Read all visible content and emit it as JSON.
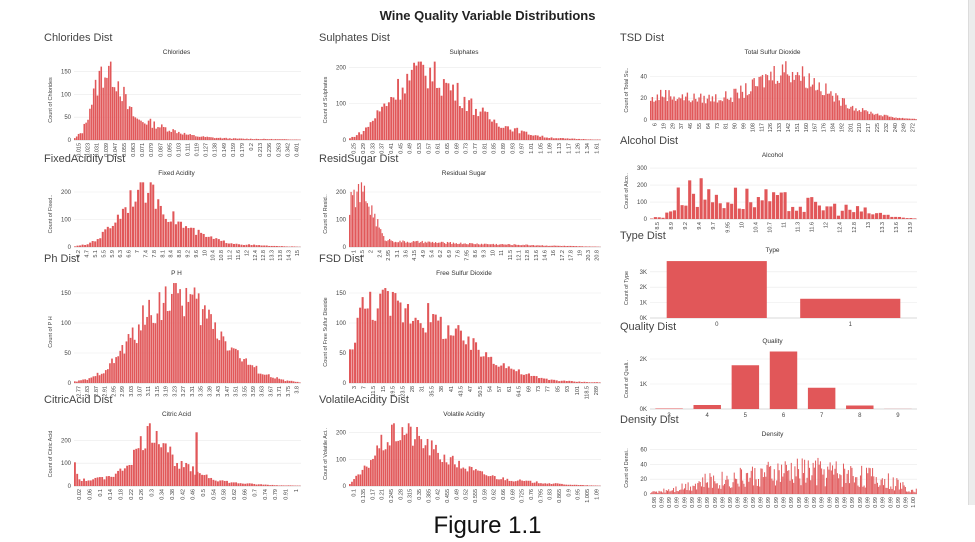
{
  "dashboard_title": "Wine Quality Variable Distributions",
  "figure_caption": "Figure 1.1",
  "colors": {
    "bar": "#e15759",
    "grid": "#eaeaea",
    "axis": "#bbbbbb",
    "text": "#444444"
  },
  "chart_data": [
    {
      "id": "chlorides",
      "panel_title": "Chlorides Dist",
      "title": "Chlorides",
      "ylabel": "Count of Chlorides",
      "type": "histogram",
      "yticks": [
        0,
        50,
        100,
        150
      ],
      "ylim": [
        0,
        175
      ],
      "xticks": [
        "0.015",
        "0.023",
        "0.031",
        "0.039",
        "0.047",
        "0.055",
        "0.063",
        "0.071",
        "0.079",
        "0.087",
        "0.095",
        "0.103",
        "0.111",
        "0.119",
        "0.127",
        "0.138",
        "0.149",
        "0.159",
        "0.179",
        "0.2",
        "0.213",
        "0.236",
        "0.263",
        "0.342",
        "0.401"
      ],
      "profile": {
        "anchors": [
          [
            0,
            2
          ],
          [
            0.04,
            20
          ],
          [
            0.08,
            90
          ],
          [
            0.12,
            150
          ],
          [
            0.16,
            160
          ],
          [
            0.2,
            130
          ],
          [
            0.24,
            70
          ],
          [
            0.28,
            45
          ],
          [
            0.33,
            40
          ],
          [
            0.38,
            30
          ],
          [
            0.45,
            20
          ],
          [
            0.5,
            12
          ],
          [
            0.55,
            8
          ],
          [
            0.62,
            5
          ],
          [
            0.72,
            3
          ],
          [
            1,
            1
          ]
        ],
        "bins": 120
      }
    },
    {
      "id": "sulphates",
      "panel_title": "Sulphates Dist",
      "title": "Sulphates",
      "ylabel": "Count of Sulphates",
      "type": "histogram",
      "yticks": [
        0,
        100,
        200
      ],
      "ylim": [
        0,
        220
      ],
      "xticks": [
        "0.25",
        "0.29",
        "0.33",
        "0.37",
        "0.41",
        "0.45",
        "0.49",
        "0.53",
        "0.57",
        "0.61",
        "0.65",
        "0.69",
        "0.73",
        "0.77",
        "0.81",
        "0.85",
        "0.89",
        "0.93",
        "0.97",
        "1.01",
        "1.05",
        "1.09",
        "1.13",
        "1.17",
        "1.26",
        "1.34",
        "1.61"
      ],
      "profile": {
        "anchors": [
          [
            0,
            3
          ],
          [
            0.06,
            25
          ],
          [
            0.12,
            80
          ],
          [
            0.2,
            150
          ],
          [
            0.26,
            190
          ],
          [
            0.3,
            200
          ],
          [
            0.36,
            170
          ],
          [
            0.42,
            140
          ],
          [
            0.5,
            90
          ],
          [
            0.56,
            60
          ],
          [
            0.62,
            40
          ],
          [
            0.7,
            20
          ],
          [
            0.78,
            8
          ],
          [
            0.86,
            4
          ],
          [
            1,
            1
          ]
        ],
        "bins": 110
      }
    },
    {
      "id": "tsd",
      "panel_title": "TSD Dist",
      "title": "Total Sulfur Dioxide",
      "ylabel": "Count of Total Su..",
      "type": "histogram",
      "yticks": [
        0,
        20,
        40
      ],
      "ylim": [
        0,
        55
      ],
      "xticks": [
        "6",
        "19",
        "29",
        "37",
        "46",
        "55",
        "64",
        "73",
        "81",
        "90",
        "99",
        "108",
        "117",
        "126",
        "133",
        "142",
        "151",
        "160",
        "167",
        "176",
        "184",
        "192",
        "201",
        "210",
        "217",
        "225",
        "232",
        "240",
        "249",
        "272"
      ],
      "profile": {
        "anchors": [
          [
            0,
            18
          ],
          [
            0.05,
            25
          ],
          [
            0.1,
            22
          ],
          [
            0.2,
            20
          ],
          [
            0.3,
            22
          ],
          [
            0.38,
            30
          ],
          [
            0.45,
            42
          ],
          [
            0.5,
            48
          ],
          [
            0.55,
            45
          ],
          [
            0.62,
            35
          ],
          [
            0.7,
            20
          ],
          [
            0.78,
            10
          ],
          [
            0.86,
            5
          ],
          [
            0.93,
            2
          ],
          [
            1,
            1
          ]
        ],
        "bins": 160
      }
    },
    {
      "id": "alcohol",
      "panel_title": "Alcohol Dist",
      "title": "Alcohol",
      "ylabel": "Count of Alco..",
      "type": "histogram",
      "yticks": [
        0,
        100,
        200,
        300
      ],
      "ylim": [
        0,
        330
      ],
      "xticks": [
        "8.5",
        "8.9",
        "9.2",
        "9.4",
        "9.7",
        "9.95",
        "10",
        "10.4",
        "10.7",
        "11",
        "11.3",
        "11.6",
        "12",
        "12.4",
        "12.8",
        "13",
        "13.3",
        "13.6",
        "13.9"
      ],
      "profile": {
        "anchors": [
          [
            0,
            2
          ],
          [
            0.05,
            20
          ],
          [
            0.1,
            120
          ],
          [
            0.14,
            260
          ],
          [
            0.2,
            180
          ],
          [
            0.3,
            160
          ],
          [
            0.4,
            140
          ],
          [
            0.5,
            120
          ],
          [
            0.6,
            100
          ],
          [
            0.7,
            80
          ],
          [
            0.8,
            55
          ],
          [
            0.88,
            30
          ],
          [
            0.95,
            10
          ],
          [
            1,
            2
          ]
        ],
        "bins": 70,
        "spiky": true
      }
    },
    {
      "id": "fixed_acidity",
      "panel_title": "FixedAcidity Dist",
      "title": "Fixed Acidity",
      "ylabel": "Count of Fixed..",
      "type": "histogram",
      "yticks": [
        0,
        100,
        200
      ],
      "ylim": [
        0,
        240
      ],
      "xticks": [
        "4.2",
        "4.7",
        "5.1",
        "5.5",
        "5.9",
        "6.3",
        "6.6",
        "7",
        "7.4",
        "7.8",
        "8.1",
        "8.4",
        "8.8",
        "9.2",
        "9.6",
        "10",
        "10.4",
        "10.8",
        "11.2",
        "11.6",
        "12",
        "12.4",
        "12.8",
        "13.3",
        "13.8",
        "14.3",
        "15"
      ],
      "profile": {
        "anchors": [
          [
            0,
            2
          ],
          [
            0.06,
            10
          ],
          [
            0.12,
            40
          ],
          [
            0.2,
            120
          ],
          [
            0.26,
            200
          ],
          [
            0.3,
            230
          ],
          [
            0.36,
            190
          ],
          [
            0.42,
            120
          ],
          [
            0.5,
            70
          ],
          [
            0.58,
            40
          ],
          [
            0.66,
            20
          ],
          [
            0.74,
            10
          ],
          [
            0.82,
            6
          ],
          [
            0.9,
            3
          ],
          [
            1,
            1
          ]
        ],
        "bins": 90
      }
    },
    {
      "id": "resid_sugar",
      "panel_title": "ResidSugar Dist",
      "title": "Residual Sugar",
      "ylabel": "Count of Resid..",
      "type": "histogram",
      "yticks": [
        0,
        100,
        200
      ],
      "ylim": [
        0,
        240
      ],
      "xticks": [
        "1",
        "1.5",
        "2",
        "2.4",
        "2.95",
        "3.1",
        "3.6",
        "4.15",
        "4.9",
        "5.4",
        "6.2",
        "6.9",
        "7.6",
        "7.95",
        "8.6",
        "9.3",
        "10",
        "11",
        "11.5",
        "12.1",
        "12.8",
        "13.6",
        "14.6",
        "16",
        "17.2",
        "17.8",
        "19",
        "20.3",
        "20.8"
      ],
      "profile": {
        "anchors": [
          [
            0,
            150
          ],
          [
            0.03,
            200
          ],
          [
            0.06,
            200
          ],
          [
            0.1,
            120
          ],
          [
            0.14,
            30
          ],
          [
            0.2,
            20
          ],
          [
            0.3,
            18
          ],
          [
            0.4,
            15
          ],
          [
            0.5,
            12
          ],
          [
            0.6,
            10
          ],
          [
            0.7,
            8
          ],
          [
            0.8,
            5
          ],
          [
            0.9,
            3
          ],
          [
            1,
            1
          ]
        ],
        "bins": 170
      }
    },
    {
      "id": "ph",
      "panel_title": "Ph Dist",
      "title": "P H",
      "ylabel": "Count of P H",
      "type": "histogram",
      "yticks": [
        0,
        50,
        100,
        150
      ],
      "ylim": [
        0,
        170
      ],
      "xticks": [
        "2.77",
        "2.83",
        "2.87",
        "2.91",
        "2.95",
        "2.99",
        "3.03",
        "3.07",
        "3.11",
        "3.15",
        "3.19",
        "3.23",
        "3.27",
        "3.31",
        "3.35",
        "3.39",
        "3.43",
        "3.47",
        "3.51",
        "3.55",
        "3.59",
        "3.63",
        "3.67",
        "3.71",
        "3.75",
        "3.8"
      ],
      "profile": {
        "anchors": [
          [
            0,
            2
          ],
          [
            0.08,
            8
          ],
          [
            0.16,
            30
          ],
          [
            0.24,
            70
          ],
          [
            0.32,
            115
          ],
          [
            0.4,
            145
          ],
          [
            0.46,
            155
          ],
          [
            0.52,
            140
          ],
          [
            0.6,
            110
          ],
          [
            0.68,
            70
          ],
          [
            0.76,
            35
          ],
          [
            0.84,
            15
          ],
          [
            0.92,
            5
          ],
          [
            1,
            1
          ]
        ],
        "bins": 110
      }
    },
    {
      "id": "fsd",
      "panel_title": "FSD Dist",
      "title": "Free Sulfur Dioxide",
      "ylabel": "Count of Free Sulfur Dioxide",
      "type": "histogram",
      "yticks": [
        0,
        50,
        100,
        150
      ],
      "ylim": [
        0,
        170
      ],
      "xticks": [
        "3",
        "7",
        "11.5",
        "15",
        "19.5",
        "23.5",
        "28",
        "31",
        "35.5",
        "38",
        "41",
        "43.5",
        "47",
        "50.5",
        "54",
        "57",
        "61",
        "64.5",
        "69",
        "73",
        "77",
        "85",
        "93",
        "101",
        "118.5",
        "289"
      ],
      "profile": {
        "anchors": [
          [
            0,
            40
          ],
          [
            0.04,
            120
          ],
          [
            0.1,
            140
          ],
          [
            0.2,
            130
          ],
          [
            0.3,
            115
          ],
          [
            0.4,
            90
          ],
          [
            0.5,
            60
          ],
          [
            0.6,
            35
          ],
          [
            0.68,
            18
          ],
          [
            0.76,
            8
          ],
          [
            0.84,
            4
          ],
          [
            0.92,
            2
          ],
          [
            1,
            1
          ]
        ],
        "bins": 100
      }
    },
    {
      "id": "type",
      "panel_title": "Type Dist",
      "title": "Type",
      "ylabel": "Count of Type",
      "type": "bar",
      "categories": [
        "0",
        "1"
      ],
      "values": [
        3700,
        1250
      ],
      "yticks": [
        0,
        1000,
        2000,
        3000
      ],
      "ytick_labels": [
        "0K",
        "1K",
        "2K",
        "3K"
      ],
      "ylim": [
        0,
        3900
      ]
    },
    {
      "id": "quality",
      "panel_title": "Quality Dist",
      "title": "Quality",
      "ylabel": "Count of Quali..",
      "type": "bar",
      "categories": [
        "3",
        "4",
        "5",
        "6",
        "7",
        "8",
        "9"
      ],
      "values": [
        20,
        160,
        1750,
        2300,
        850,
        140,
        5
      ],
      "yticks": [
        0,
        1000,
        2000
      ],
      "ytick_labels": [
        "0K",
        "1K",
        "2K"
      ],
      "ylim": [
        0,
        2400
      ]
    },
    {
      "id": "citric_acid",
      "panel_title": "CitricAcid Dist",
      "title": "Citric Acid",
      "ylabel": "Count of Citric Acid",
      "type": "histogram",
      "yticks": [
        0,
        100,
        200
      ],
      "ylim": [
        0,
        280
      ],
      "xticks": [
        "0.02",
        "0.06",
        "0.1",
        "0.14",
        "0.18",
        "0.22",
        "0.26",
        "0.3",
        "0.34",
        "0.38",
        "0.42",
        "0.46",
        "0.5",
        "0.54",
        "0.58",
        "0.62",
        "0.66",
        "0.7",
        "0.74",
        "0.79",
        "0.91",
        "1"
      ],
      "profile": {
        "anchors": [
          [
            0,
            140
          ],
          [
            0.02,
            30
          ],
          [
            0.06,
            25
          ],
          [
            0.12,
            35
          ],
          [
            0.2,
            60
          ],
          [
            0.26,
            130
          ],
          [
            0.32,
            230
          ],
          [
            0.36,
            250
          ],
          [
            0.4,
            200
          ],
          [
            0.44,
            120
          ],
          [
            0.5,
            80
          ],
          [
            0.56,
            60
          ],
          [
            0.62,
            30
          ],
          [
            0.7,
            15
          ],
          [
            0.8,
            8
          ],
          [
            0.9,
            3
          ],
          [
            1,
            2
          ]
        ],
        "bins": 100,
        "spikes": [
          [
            0.535,
            235
          ]
        ]
      }
    },
    {
      "id": "volatile_acidity",
      "panel_title": "VolatileAcidity Dist",
      "title": "Volatile Acidity",
      "ylabel": "Count of Volatile Aci..",
      "type": "histogram",
      "yticks": [
        0,
        100,
        200
      ],
      "ylim": [
        0,
        240
      ],
      "xticks": [
        "0.1",
        "0.135",
        "0.17",
        "0.21",
        "0.245",
        "0.28",
        "0.315",
        "0.35",
        "0.385",
        "0.42",
        "0.455",
        "0.49",
        "0.52",
        "0.555",
        "0.59",
        "0.62",
        "0.66",
        "0.69",
        "0.725",
        "0.76",
        "0.795",
        "0.83",
        "0.865",
        "0.9",
        "0.95",
        "1.005",
        "1.09"
      ],
      "profile": {
        "anchors": [
          [
            0,
            5
          ],
          [
            0.06,
            60
          ],
          [
            0.12,
            150
          ],
          [
            0.18,
            200
          ],
          [
            0.22,
            215
          ],
          [
            0.28,
            180
          ],
          [
            0.36,
            120
          ],
          [
            0.44,
            80
          ],
          [
            0.52,
            50
          ],
          [
            0.6,
            30
          ],
          [
            0.7,
            18
          ],
          [
            0.8,
            10
          ],
          [
            0.9,
            4
          ],
          [
            1,
            1
          ]
        ],
        "bins": 120
      }
    },
    {
      "id": "density",
      "panel_title": "Density Dist",
      "title": "Density",
      "ylabel": "Count of Densi..",
      "type": "histogram",
      "yticks": [
        0,
        20,
        40,
        60
      ],
      "ylim": [
        0,
        70
      ],
      "xticks": [
        "0.98",
        "0.99",
        "0.99",
        "0.99",
        "0.99",
        "0.99",
        "0.99",
        "0.99",
        "0.99",
        "0.99",
        "0.99",
        "0.99",
        "0.99",
        "0.99",
        "0.99",
        "0.99",
        "0.99",
        "0.99",
        "0.99",
        "0.99",
        "0.99",
        "0.99",
        "0.99",
        "0.99",
        "0.99",
        "0.99",
        "0.99",
        "0.99",
        "0.99",
        "0.99",
        "0.99",
        "0.99",
        "0.99",
        "0.99",
        "1.00"
      ],
      "profile": {
        "anchors": [
          [
            0,
            2
          ],
          [
            0.1,
            10
          ],
          [
            0.2,
            20
          ],
          [
            0.3,
            25
          ],
          [
            0.4,
            30
          ],
          [
            0.5,
            35
          ],
          [
            0.6,
            38
          ],
          [
            0.7,
            35
          ],
          [
            0.8,
            30
          ],
          [
            0.9,
            20
          ],
          [
            1,
            5
          ]
        ],
        "bins": 220,
        "spiky": true
      }
    }
  ]
}
